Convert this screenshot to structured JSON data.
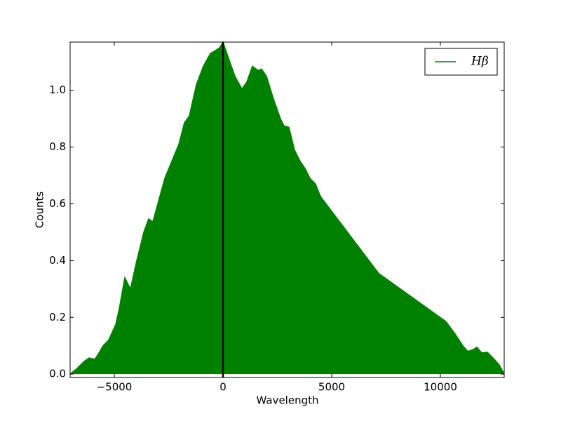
{
  "chart_data": {
    "type": "area",
    "xlabel": "Wavelength",
    "ylabel": "Counts",
    "x": [
      -7032,
      -6710,
      -6387,
      -6160,
      -5900,
      -5740,
      -5516,
      -5260,
      -4935,
      -4774,
      -4516,
      -4258,
      -3968,
      -3645,
      -3420,
      -3226,
      -3000,
      -2677,
      -2355,
      -2032,
      -1774,
      -1548,
      -1226,
      -903,
      -580,
      -355,
      -161,
      0,
      226,
      548,
      871,
      1097,
      1355,
      1613,
      1774,
      2000,
      2322,
      2645,
      2806,
      3032,
      3290,
      3548,
      3774,
      4000,
      4258,
      4484,
      7161,
      10258,
      10645,
      11032,
      11258,
      11516,
      11677,
      11903,
      12161,
      12484,
      12710,
      12935
    ],
    "series": [
      {
        "name": "Hβ",
        "color": "#008000",
        "values": [
          0.0,
          0.02,
          0.045,
          0.057,
          0.052,
          0.07,
          0.1,
          0.12,
          0.175,
          0.23,
          0.34,
          0.3,
          0.4,
          0.5,
          0.547,
          0.537,
          0.6,
          0.69,
          0.75,
          0.81,
          0.886,
          0.91,
          1.02,
          1.085,
          1.13,
          1.14,
          1.15,
          1.17,
          1.12,
          1.05,
          1.005,
          1.03,
          1.085,
          1.07,
          1.075,
          1.05,
          0.97,
          0.9,
          0.875,
          0.87,
          0.79,
          0.75,
          0.725,
          0.69,
          0.67,
          0.626,
          0.355,
          0.185,
          0.145,
          0.1,
          0.08,
          0.087,
          0.095,
          0.075,
          0.077,
          0.052,
          0.032,
          0.0
        ]
      }
    ],
    "vline": 0,
    "vline_color": "#000000",
    "xlim": [
      -7032,
      12935
    ],
    "ylim": [
      -0.012,
      1.17
    ],
    "xticks": [
      {
        "value": -5000,
        "label": "−5000"
      },
      0,
      5000,
      10000
    ],
    "yticks": [
      {
        "value": 0,
        "label": "0.0"
      },
      0.2,
      0.4,
      0.6,
      0.8,
      {
        "value": 1,
        "label": "1.0"
      }
    ],
    "legend": "upper right"
  }
}
